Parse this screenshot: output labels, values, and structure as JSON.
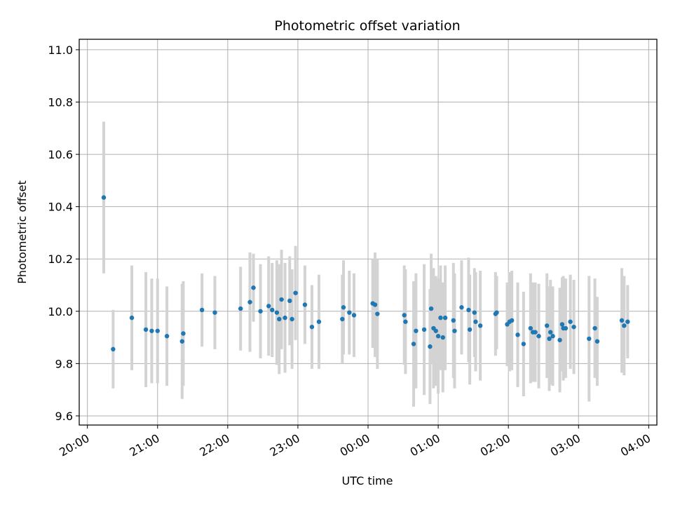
{
  "chart_data": {
    "type": "scatter",
    "title": "Photometric offset variation",
    "xlabel": "UTC time",
    "ylabel": "Photometric offset",
    "x_is_time": true,
    "xlim": [
      "19:53",
      "04:07"
    ],
    "ylim": [
      9.565,
      11.04
    ],
    "xticks": [
      "20:00",
      "21:00",
      "22:00",
      "23:00",
      "00:00",
      "01:00",
      "02:00",
      "03:00",
      "04:00"
    ],
    "yticks": [
      9.6,
      9.8,
      10.0,
      10.2,
      10.4,
      10.6,
      10.8,
      11.0
    ],
    "grid": true,
    "legend": "none",
    "colors": {
      "point": "#1f77b4",
      "errorbar": "#d3d3d3",
      "grid": "#b0b0b0"
    },
    "series": [
      {
        "x": [
          "20:14",
          "20:22",
          "20:38",
          "20:50",
          "20:55",
          "21:00",
          "21:08",
          "21:21",
          "21:22",
          "21:38",
          "21:49",
          "22:11",
          "22:19",
          "22:22",
          "22:28",
          "22:35",
          "22:38",
          "22:42",
          "22:44",
          "22:46",
          "22:49",
          "22:53",
          "22:55",
          "22:58",
          "23:06",
          "23:12",
          "23:18",
          "23:38",
          "23:39",
          "23:44",
          "23:48",
          "00:04",
          "00:06",
          "00:08",
          "00:31",
          "00:32",
          "00:39",
          "00:41",
          "00:48",
          "00:53",
          "00:54",
          "00:56",
          "00:58",
          "01:00",
          "01:02",
          "01:04",
          "01:06",
          "01:13",
          "01:14",
          "01:20",
          "01:26",
          "01:27",
          "01:31",
          "01:32",
          "01:36",
          "01:49",
          "01:50",
          "01:59",
          "02:01",
          "02:03",
          "02:08",
          "02:13",
          "02:19",
          "02:21",
          "02:23",
          "02:26",
          "02:33",
          "02:35",
          "02:36",
          "02:38",
          "02:44",
          "02:46",
          "02:47",
          "02:49",
          "02:53",
          "02:56",
          "03:09",
          "03:14",
          "03:16",
          "03:37",
          "03:39",
          "03:42"
        ],
        "y": [
          10.435,
          9.855,
          9.975,
          9.93,
          9.925,
          9.925,
          9.905,
          9.885,
          9.915,
          10.005,
          9.995,
          10.01,
          10.035,
          10.09,
          10.0,
          10.02,
          10.005,
          9.995,
          9.97,
          10.045,
          9.975,
          10.04,
          9.97,
          10.07,
          10.025,
          9.94,
          9.96,
          9.97,
          10.015,
          9.995,
          9.985,
          10.03,
          10.025,
          9.99,
          9.985,
          9.96,
          9.875,
          9.925,
          9.93,
          9.865,
          10.01,
          9.935,
          9.925,
          9.905,
          9.975,
          9.9,
          9.975,
          9.965,
          9.925,
          10.015,
          10.005,
          9.93,
          9.995,
          9.96,
          9.945,
          9.99,
          9.995,
          9.95,
          9.96,
          9.965,
          9.91,
          9.875,
          9.935,
          9.92,
          9.92,
          9.905,
          9.945,
          9.895,
          9.92,
          9.905,
          9.89,
          9.95,
          9.935,
          9.935,
          9.96,
          9.94,
          9.895,
          9.935,
          9.885,
          9.965,
          9.945,
          9.96
        ],
        "yerr": [
          0.29,
          0.15,
          0.2,
          0.22,
          0.2,
          0.2,
          0.19,
          0.22,
          0.2,
          0.14,
          0.14,
          0.16,
          0.19,
          0.13,
          0.18,
          0.19,
          0.18,
          0.2,
          0.21,
          0.19,
          0.21,
          0.17,
          0.19,
          0.18,
          0.15,
          0.16,
          0.18,
          0.17,
          0.18,
          0.16,
          0.16,
          0.17,
          0.2,
          0.21,
          0.19,
          0.2,
          0.24,
          0.22,
          0.25,
          0.22,
          0.21,
          0.23,
          0.21,
          0.22,
          0.2,
          0.21,
          0.2,
          0.22,
          0.22,
          0.18,
          0.2,
          0.21,
          0.17,
          0.19,
          0.21,
          0.16,
          0.14,
          0.16,
          0.19,
          0.19,
          0.2,
          0.2,
          0.21,
          0.19,
          0.19,
          0.2,
          0.2,
          0.2,
          0.2,
          0.19,
          0.2,
          0.18,
          0.2,
          0.19,
          0.18,
          0.18,
          0.24,
          0.19,
          0.17,
          0.2,
          0.19,
          0.14
        ]
      }
    ]
  }
}
